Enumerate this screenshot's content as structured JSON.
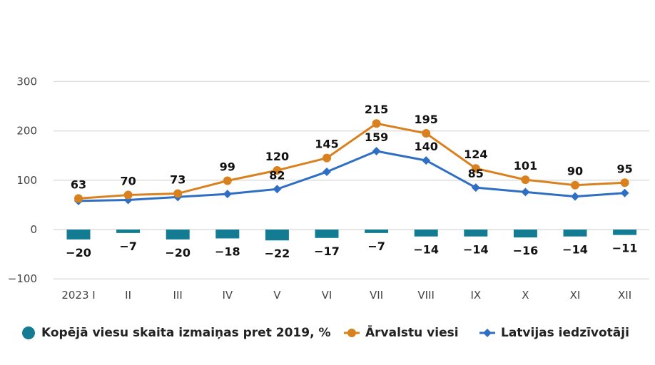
{
  "chart_data": {
    "type": "bar+line",
    "title": "",
    "xlabel": "",
    "ylabel": "",
    "ylim": [
      -100,
      300
    ],
    "yticks": [
      -100,
      0,
      100,
      200,
      300
    ],
    "ytick_labels": [
      "−100",
      "0",
      "100",
      "200",
      "300"
    ],
    "grid": true,
    "legend_position": "bottom",
    "categories": [
      "2023 I",
      "II",
      "III",
      "IV",
      "V",
      "VI",
      "VII",
      "VIII",
      "IX",
      "X",
      "XI",
      "XII"
    ],
    "series": [
      {
        "name": "Kopējā viesu skaita izmaiņas pret 2019, %",
        "type": "bar",
        "color": "#137c93",
        "values": [
          -20,
          -7,
          -20,
          -18,
          -22,
          -17,
          -7,
          -14,
          -14,
          -16,
          -14,
          -11
        ],
        "labels": [
          "−20",
          "−7",
          "−20",
          "−18",
          "−22",
          "−17",
          "−7",
          "−14",
          "−14",
          "−16",
          "−14",
          "−11"
        ]
      },
      {
        "name": "Ārvalstu viesi",
        "type": "line",
        "marker": "circle",
        "color": "#d9811e",
        "values": [
          63,
          70,
          73,
          99,
          120,
          145,
          215,
          195,
          124,
          101,
          90,
          95
        ],
        "labels": [
          "63",
          "70",
          "73",
          "99",
          "120",
          "145",
          "215",
          "195",
          "124",
          "101",
          "90",
          "95"
        ]
      },
      {
        "name": "Latvijas iedzīvotāji",
        "type": "line",
        "marker": "diamond",
        "color": "#2e6fc4",
        "values": [
          58,
          60,
          66,
          72,
          82,
          117,
          159,
          140,
          85,
          76,
          67,
          74
        ],
        "labels": [
          "",
          "",
          "",
          "",
          "82",
          "",
          "159",
          "140",
          "85",
          "",
          "",
          ""
        ]
      }
    ]
  },
  "legend": {
    "items": [
      {
        "label": "Kopējā viesu skaita izmaiņas pret 2019, %",
        "marker": "circle-icon",
        "color": "#137c93"
      },
      {
        "label": "Ārvalstu viesi",
        "marker": "line-circle-icon",
        "color": "#d9811e"
      },
      {
        "label": "Latvijas iedzīvotāji",
        "marker": "line-diamond-icon",
        "color": "#2e6fc4"
      }
    ]
  }
}
